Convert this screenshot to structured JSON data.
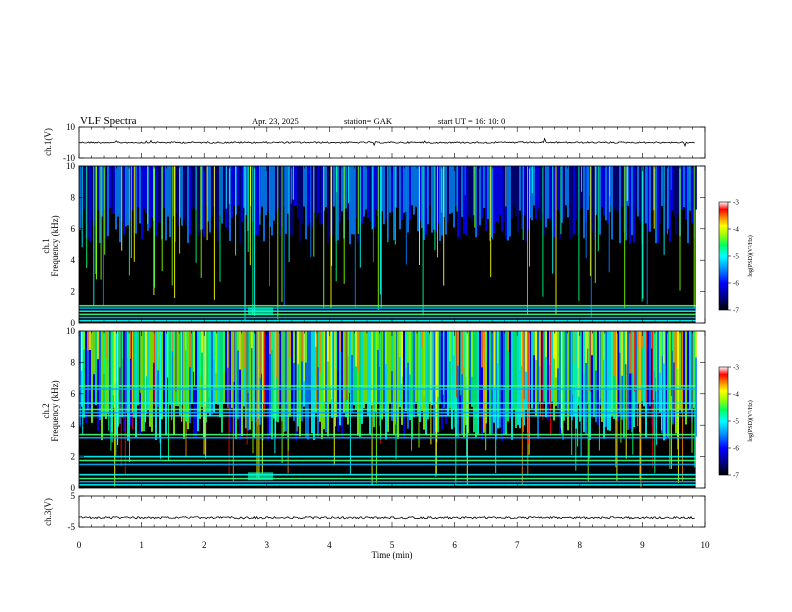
{
  "header": {
    "title": "VLF  Spectra",
    "date": "Apr. 23,  2025",
    "station": "station= GAK",
    "start_ut": "start  UT  =    16: 10: 0"
  },
  "colors": {
    "background": "#ffffff",
    "axes": "#000000",
    "spectrogram_black": "#000000",
    "colormap": [
      "#000000",
      "#000080",
      "#0000ff",
      "#0080ff",
      "#00ffff",
      "#00ff80",
      "#80ff00",
      "#ffff00",
      "#ff8000",
      "#ff0000",
      "#ffffff"
    ]
  },
  "chart_data": [
    {
      "type": "line",
      "panel": "ch1-waveform",
      "ylabel": "ch.1(V)",
      "ylim": [
        -10,
        10
      ],
      "yticks": [
        "10",
        "-10"
      ],
      "description_values": {
        "mean": 0
      }
    },
    {
      "type": "heatmap",
      "panel": "ch1-spectrogram",
      "ylabel": "ch.1\nFrequency  (kHz)",
      "ylim": [
        0,
        10
      ],
      "yticks": [
        "0",
        "2",
        "4",
        "6",
        "8",
        "10"
      ],
      "colorbar": {
        "label": "log(PSD)(V²/Hz)",
        "range": [
          -7,
          -3
        ],
        "ticks": [
          "-3",
          "-4",
          "-5",
          "-6",
          "-7"
        ]
      },
      "noise_lines_khz": [
        0.15,
        0.35,
        0.55,
        0.75,
        0.95,
        1.1
      ]
    },
    {
      "type": "heatmap",
      "panel": "ch2-spectrogram",
      "ylabel": "ch.2\nFrequency  (kHz)",
      "ylim": [
        0,
        10
      ],
      "yticks": [
        "0",
        "2",
        "4",
        "6",
        "8",
        "10"
      ],
      "colorbar": {
        "label": "log(PSD)(V²/Hz)",
        "range": [
          -7,
          -3
        ],
        "ticks": [
          "-3",
          "-4",
          "-5",
          "-6",
          "-7"
        ]
      },
      "noise_lines_khz": [
        0.2,
        0.4,
        0.6,
        0.85,
        1.5,
        1.75,
        2.0,
        3.2,
        3.4,
        4.6,
        4.8,
        5.0,
        5.4,
        6.3,
        6.5
      ]
    },
    {
      "type": "line",
      "panel": "ch3-waveform",
      "ylabel": "ch.3(V)",
      "ylim": [
        -5,
        5
      ],
      "yticks": [
        "5",
        "-5"
      ],
      "description_values": {
        "mean": -2
      }
    }
  ],
  "xaxis": {
    "label": "Time  (min)",
    "range": [
      0,
      10
    ],
    "ticks": [
      "0",
      "1",
      "2",
      "3",
      "4",
      "5",
      "6",
      "7",
      "8",
      "9",
      "10"
    ],
    "data_end_min": 9.85
  }
}
